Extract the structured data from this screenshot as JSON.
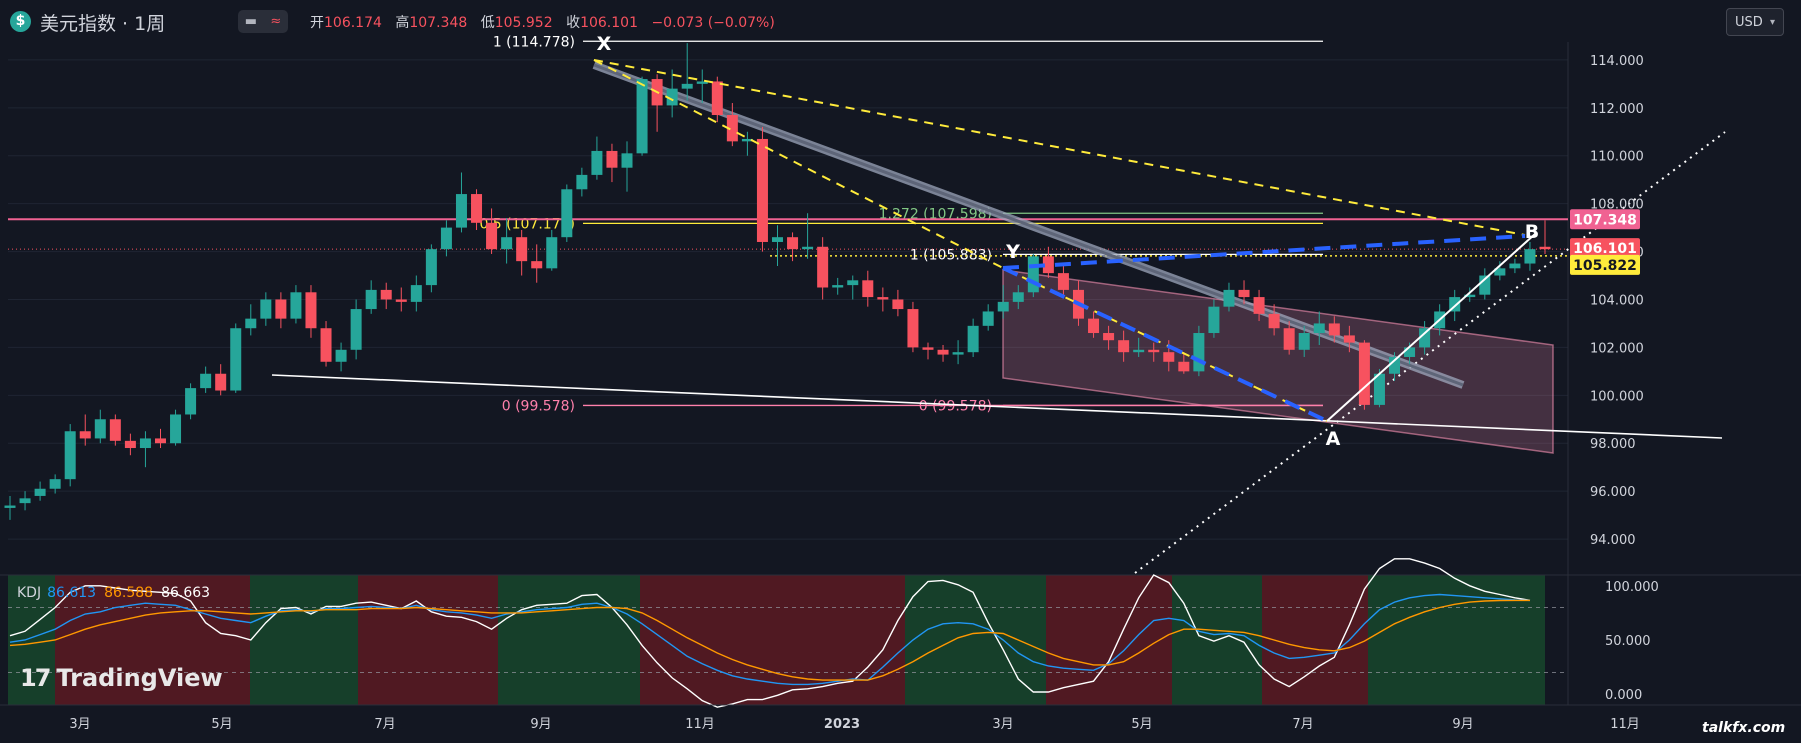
{
  "header": {
    "symbol_icon": "$",
    "title": "美元指数 · 1周",
    "toggle_icon": "minus-icon",
    "wave_icon": "≈",
    "ohlc": [
      {
        "label": "开",
        "value": "106.174"
      },
      {
        "label": "高",
        "value": "107.348"
      },
      {
        "label": "低",
        "value": "105.952"
      },
      {
        "label": "收",
        "value": "106.101"
      }
    ],
    "change": "−0.073 (−0.07%)",
    "currency": "USD"
  },
  "indicator": {
    "name": "KDJ",
    "k": "86.613",
    "d": "86.588",
    "j": "86.663"
  },
  "branding": {
    "logo_text": "TradingView",
    "watermark": "talkfx.com"
  },
  "colors": {
    "up": "#26a69a",
    "down": "#f7525f",
    "bg": "#131722",
    "fib_pink": "#ff80ab",
    "fib_yellow": "#ffeb3b"
  },
  "chart_data": {
    "type": "candlestick",
    "title": "美元指数 · 1周",
    "xlabel": "",
    "ylabel": "",
    "ylim": [
      92.5,
      116.5
    ],
    "x_tick_labels": [
      "3月",
      "5月",
      "7月",
      "9月",
      "11月",
      "2023",
      "3月",
      "5月",
      "7月",
      "9月",
      "11月"
    ],
    "y_tick_labels": [
      "94.000",
      "96.000",
      "98.000",
      "100.000",
      "102.000",
      "104.000",
      "106.000",
      "108.000",
      "110.000",
      "112.000",
      "114.000"
    ],
    "y_ticks": [
      94,
      96,
      98,
      100,
      102,
      104,
      106,
      108,
      110,
      112,
      114
    ],
    "price_labels": [
      {
        "text": "107.348",
        "value": 107.348,
        "color": "#f06292"
      },
      {
        "text": "106.101",
        "value": 106.101,
        "color": "#f7525f"
      },
      {
        "text": "105.822",
        "value": 105.822,
        "color": "#ffeb3b"
      }
    ],
    "candles": [
      [
        95.3,
        95.4,
        94.8,
        95.8
      ],
      [
        95.5,
        95.7,
        95.2,
        96.0
      ],
      [
        95.8,
        96.1,
        95.6,
        96.4
      ],
      [
        96.1,
        96.5,
        95.9,
        96.7
      ],
      [
        96.5,
        98.5,
        96.2,
        98.8
      ],
      [
        98.5,
        98.2,
        97.9,
        99.2
      ],
      [
        98.2,
        99.0,
        98.0,
        99.4
      ],
      [
        99.0,
        98.1,
        97.9,
        99.2
      ],
      [
        98.1,
        97.8,
        97.5,
        98.4
      ],
      [
        97.8,
        98.2,
        97.0,
        98.5
      ],
      [
        98.2,
        98.0,
        97.8,
        98.6
      ],
      [
        98.0,
        99.2,
        97.9,
        99.4
      ],
      [
        99.2,
        100.3,
        99.0,
        100.5
      ],
      [
        100.3,
        100.9,
        100.1,
        101.2
      ],
      [
        100.9,
        100.2,
        100.0,
        101.3
      ],
      [
        100.2,
        102.8,
        100.1,
        103.0
      ],
      [
        102.8,
        103.2,
        102.5,
        103.8
      ],
      [
        103.2,
        104.0,
        102.9,
        104.3
      ],
      [
        104.0,
        103.2,
        102.8,
        104.3
      ],
      [
        103.2,
        104.3,
        103.0,
        104.6
      ],
      [
        104.3,
        102.8,
        102.4,
        104.6
      ],
      [
        102.8,
        101.4,
        101.2,
        103.1
      ],
      [
        101.4,
        101.9,
        101.0,
        102.2
      ],
      [
        101.9,
        103.6,
        101.5,
        104.0
      ],
      [
        103.6,
        104.4,
        103.4,
        104.8
      ],
      [
        104.4,
        104.0,
        103.6,
        104.7
      ],
      [
        104.0,
        103.9,
        103.5,
        104.5
      ],
      [
        103.9,
        104.6,
        103.5,
        105.0
      ],
      [
        104.6,
        106.1,
        104.3,
        106.3
      ],
      [
        106.1,
        107.0,
        105.8,
        107.3
      ],
      [
        107.0,
        108.4,
        106.8,
        109.3
      ],
      [
        108.4,
        107.2,
        106.9,
        108.6
      ],
      [
        107.2,
        106.1,
        105.9,
        107.8
      ],
      [
        106.1,
        106.6,
        105.5,
        107.4
      ],
      [
        106.6,
        105.6,
        105.0,
        106.9
      ],
      [
        105.6,
        105.3,
        104.7,
        106.3
      ],
      [
        105.3,
        106.6,
        105.2,
        106.9
      ],
      [
        106.6,
        108.6,
        106.4,
        108.8
      ],
      [
        108.6,
        109.2,
        108.3,
        109.5
      ],
      [
        109.2,
        110.2,
        109.0,
        110.8
      ],
      [
        110.2,
        109.5,
        108.9,
        110.5
      ],
      [
        109.5,
        110.1,
        108.5,
        110.6
      ],
      [
        110.1,
        113.2,
        110.0,
        113.3
      ],
      [
        113.2,
        112.1,
        111.0,
        113.4
      ],
      [
        112.1,
        112.8,
        111.6,
        113.6
      ],
      [
        112.8,
        113.0,
        112.3,
        114.7
      ],
      [
        113.0,
        113.1,
        112.2,
        113.6
      ],
      [
        113.1,
        111.7,
        111.4,
        113.3
      ],
      [
        111.7,
        110.6,
        110.4,
        112.2
      ],
      [
        110.6,
        110.7,
        110.0,
        111.0
      ],
      [
        110.7,
        106.4,
        106.0,
        111.2
      ],
      [
        106.4,
        106.6,
        105.4,
        107.1
      ],
      [
        106.6,
        106.1,
        105.6,
        106.8
      ],
      [
        106.1,
        106.2,
        105.7,
        107.6
      ],
      [
        106.2,
        104.5,
        104.0,
        106.6
      ],
      [
        104.5,
        104.6,
        104.2,
        104.9
      ],
      [
        104.6,
        104.8,
        104.0,
        105.0
      ],
      [
        104.8,
        104.1,
        103.7,
        105.2
      ],
      [
        104.1,
        104.0,
        103.5,
        104.5
      ],
      [
        104.0,
        103.6,
        103.3,
        104.4
      ],
      [
        103.6,
        102.0,
        101.8,
        103.9
      ],
      [
        102.0,
        101.9,
        101.5,
        102.2
      ],
      [
        101.9,
        101.7,
        101.4,
        102.1
      ],
      [
        101.7,
        101.8,
        101.3,
        102.3
      ],
      [
        101.8,
        102.9,
        101.6,
        103.2
      ],
      [
        102.9,
        103.5,
        102.7,
        103.8
      ],
      [
        103.5,
        103.9,
        103.2,
        104.6
      ],
      [
        103.9,
        104.3,
        103.6,
        104.6
      ],
      [
        104.3,
        105.8,
        104.1,
        105.9
      ],
      [
        105.8,
        105.1,
        104.9,
        106.2
      ],
      [
        105.1,
        104.4,
        104.2,
        105.4
      ],
      [
        104.4,
        103.2,
        102.9,
        104.8
      ],
      [
        103.2,
        102.6,
        102.4,
        103.5
      ],
      [
        102.6,
        102.3,
        101.9,
        102.9
      ],
      [
        102.3,
        101.8,
        101.4,
        102.7
      ],
      [
        101.8,
        101.9,
        101.6,
        102.4
      ],
      [
        101.9,
        101.8,
        101.4,
        102.2
      ],
      [
        101.8,
        101.4,
        101.0,
        102.3
      ],
      [
        101.4,
        101.0,
        100.9,
        101.8
      ],
      [
        101.0,
        102.6,
        100.8,
        102.9
      ],
      [
        102.6,
        103.7,
        102.4,
        104.0
      ],
      [
        103.7,
        104.4,
        103.5,
        104.7
      ],
      [
        104.4,
        104.1,
        103.8,
        104.8
      ],
      [
        104.1,
        103.4,
        103.1,
        104.4
      ],
      [
        103.4,
        102.8,
        102.5,
        103.8
      ],
      [
        102.8,
        101.9,
        101.7,
        103.1
      ],
      [
        101.9,
        102.6,
        101.6,
        102.9
      ],
      [
        102.6,
        103.0,
        102.1,
        103.5
      ],
      [
        103.0,
        102.5,
        102.2,
        103.3
      ],
      [
        102.5,
        102.2,
        101.8,
        102.9
      ],
      [
        102.2,
        99.6,
        99.4,
        102.3
      ],
      [
        99.6,
        100.9,
        99.5,
        101.1
      ],
      [
        100.9,
        101.6,
        100.6,
        101.8
      ],
      [
        101.6,
        102.0,
        101.3,
        102.2
      ],
      [
        102.0,
        102.8,
        101.7,
        103.1
      ],
      [
        102.8,
        103.5,
        102.5,
        103.8
      ],
      [
        103.5,
        104.1,
        103.1,
        104.4
      ],
      [
        104.1,
        104.2,
        103.9,
        104.5
      ],
      [
        104.2,
        105.0,
        104.0,
        105.3
      ],
      [
        105.0,
        105.3,
        104.8,
        105.6
      ],
      [
        105.3,
        105.5,
        105.1,
        105.7
      ],
      [
        105.5,
        106.1,
        105.2,
        106.4
      ],
      [
        106.2,
        106.1,
        105.9,
        107.3
      ]
    ],
    "annotations": [
      {
        "type": "fib_level",
        "text": "1 (114.778)",
        "value": 114.778
      },
      {
        "type": "fib_level",
        "text": "0.5 (107.178)",
        "value": 107.178
      },
      {
        "type": "fib_level",
        "text": "0 (99.578)",
        "value": 99.578
      },
      {
        "type": "fib_level",
        "text": "1.272 (107.598)",
        "value": 107.598
      },
      {
        "type": "fib_level",
        "text": "1 (105.883)",
        "value": 105.883
      },
      {
        "type": "fib_level",
        "text": "0 (99.578)",
        "value": 99.578
      },
      {
        "type": "point",
        "text": "X",
        "value": 114.778
      },
      {
        "type": "point",
        "text": "Y",
        "value": 105.883
      },
      {
        "type": "point",
        "text": "A",
        "value": 99.578
      },
      {
        "type": "point",
        "text": "B",
        "value": 107.348
      }
    ],
    "kdj": {
      "ylim": [
        -10,
        110
      ],
      "y_tick_labels": [
        "0.000",
        "50.000",
        "100.000"
      ],
      "y_ticks": [
        0,
        50,
        100
      ],
      "levels": [
        20,
        80
      ],
      "k": [
        48,
        50,
        55,
        60,
        68,
        74,
        76,
        80,
        82,
        84,
        83,
        82,
        78,
        74,
        70,
        68,
        66,
        72,
        77,
        78,
        76,
        79,
        79,
        80,
        81,
        80,
        79,
        82,
        78,
        76,
        75,
        73,
        70,
        74,
        76,
        78,
        79,
        80,
        83,
        84,
        80,
        74,
        65,
        55,
        45,
        35,
        28,
        22,
        17,
        14,
        12,
        10,
        9,
        9,
        10,
        12,
        14,
        13,
        25,
        38,
        50,
        60,
        65,
        66,
        65,
        60,
        50,
        38,
        30,
        26,
        24,
        23,
        22,
        28,
        40,
        55,
        68,
        70,
        68,
        58,
        55,
        56,
        54,
        45,
        38,
        33,
        34,
        36,
        38,
        50,
        65,
        78,
        85,
        89,
        91,
        92,
        91,
        90,
        89,
        88,
        87,
        86.6
      ],
      "d": [
        45,
        46,
        48,
        50,
        55,
        60,
        64,
        67,
        70,
        73,
        75,
        76,
        77,
        77,
        76,
        75,
        74,
        75,
        76,
        77,
        77,
        78,
        78,
        78,
        79,
        79,
        79,
        80,
        79,
        78,
        77,
        76,
        75,
        75,
        75,
        76,
        77,
        78,
        79,
        80,
        80,
        79,
        75,
        68,
        60,
        52,
        45,
        38,
        32,
        27,
        23,
        19,
        16,
        14,
        13,
        13,
        13,
        13,
        17,
        23,
        30,
        38,
        45,
        52,
        56,
        57,
        56,
        50,
        44,
        38,
        33,
        30,
        27,
        27,
        30,
        38,
        47,
        55,
        60,
        60,
        59,
        58,
        57,
        54,
        50,
        46,
        43,
        41,
        40,
        43,
        49,
        57,
        65,
        71,
        76,
        80,
        83,
        85,
        86,
        86.5,
        86.6,
        86.588
      ],
      "j": [
        54,
        58,
        69,
        80,
        94,
        100,
        100,
        98,
        96,
        95,
        94,
        93,
        86,
        66,
        56,
        54,
        50,
        66,
        79,
        80,
        74,
        81,
        81,
        84,
        85,
        82,
        79,
        86,
        76,
        72,
        71,
        67,
        60,
        70,
        78,
        82,
        83,
        84,
        91,
        92,
        80,
        64,
        45,
        29,
        15,
        5,
        -6,
        -12,
        -9,
        -5,
        -5,
        -1,
        4,
        5,
        7,
        10,
        12,
        25,
        41,
        68,
        90,
        104,
        105,
        101,
        94,
        66,
        41,
        14,
        2,
        2,
        6,
        9,
        12,
        30,
        60,
        89,
        110,
        103,
        84,
        54,
        49,
        54,
        48,
        27,
        14,
        7,
        16,
        26,
        34,
        64,
        97,
        116,
        125,
        125,
        121,
        116,
        107,
        100,
        95,
        92,
        89,
        86.663
      ]
    }
  }
}
